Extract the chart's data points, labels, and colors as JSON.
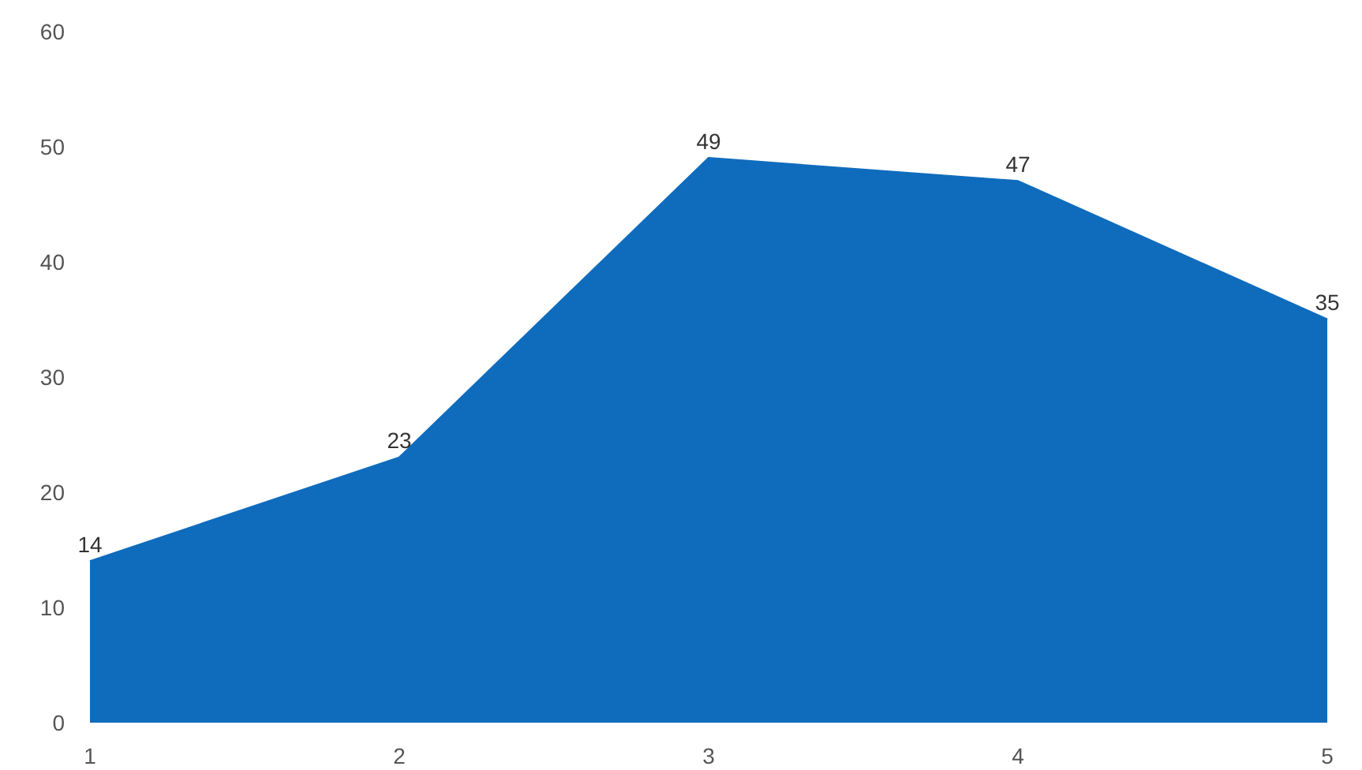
{
  "chart_data": {
    "type": "area",
    "categories": [
      "1",
      "2",
      "3",
      "4",
      "5"
    ],
    "values": [
      14,
      23,
      49,
      47,
      35
    ],
    "color": "#0f6cbd",
    "ylim": [
      0,
      60
    ],
    "yticks": [
      0,
      10,
      20,
      30,
      40,
      50,
      60
    ],
    "data_labels": true,
    "marker": "none"
  }
}
